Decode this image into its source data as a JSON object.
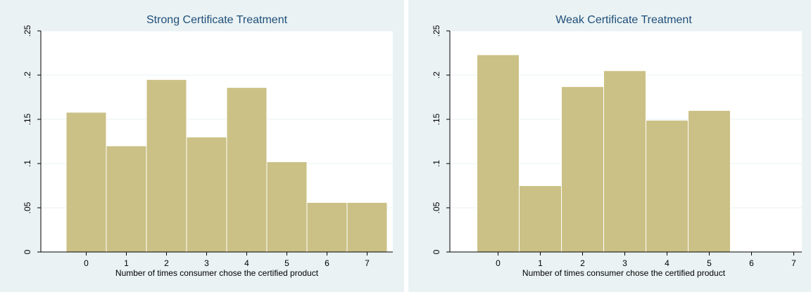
{
  "chart_data": [
    {
      "type": "bar",
      "title": "Strong Certificate Treatment",
      "xlabel": "Number of times consumer chose the certified product",
      "ylabel": "",
      "categories": [
        "0",
        "1",
        "2",
        "3",
        "4",
        "5",
        "6",
        "7"
      ],
      "values": [
        0.158,
        0.12,
        0.195,
        0.13,
        0.186,
        0.102,
        0.056,
        0.056
      ],
      "ylim": [
        0,
        0.25
      ],
      "yticks": [
        "0",
        ".05",
        ".1",
        ".15",
        ".2",
        ".25"
      ],
      "xticks": [
        "0",
        "1",
        "2",
        "3",
        "4",
        "5",
        "6",
        "7"
      ],
      "colors": {
        "bar": "#cbc186",
        "title": "#1f4e79",
        "panel": "#eaf2f3"
      }
    },
    {
      "type": "bar",
      "title": "Weak Certificate Treatment",
      "xlabel": "Number of times consumer chose the certified product",
      "ylabel": "",
      "categories": [
        "0",
        "1",
        "2",
        "3",
        "4",
        "5"
      ],
      "values": [
        0.223,
        0.075,
        0.187,
        0.205,
        0.149,
        0.16
      ],
      "ylim": [
        0,
        0.25
      ],
      "yticks": [
        "0",
        ".05",
        ".1",
        ".15",
        ".2",
        ".25"
      ],
      "xticks": [
        "0",
        "1",
        "2",
        "3",
        "4",
        "5",
        "6",
        "7"
      ],
      "colors": {
        "bar": "#cbc186",
        "title": "#1f4e79",
        "panel": "#eaf2f3"
      }
    }
  ]
}
